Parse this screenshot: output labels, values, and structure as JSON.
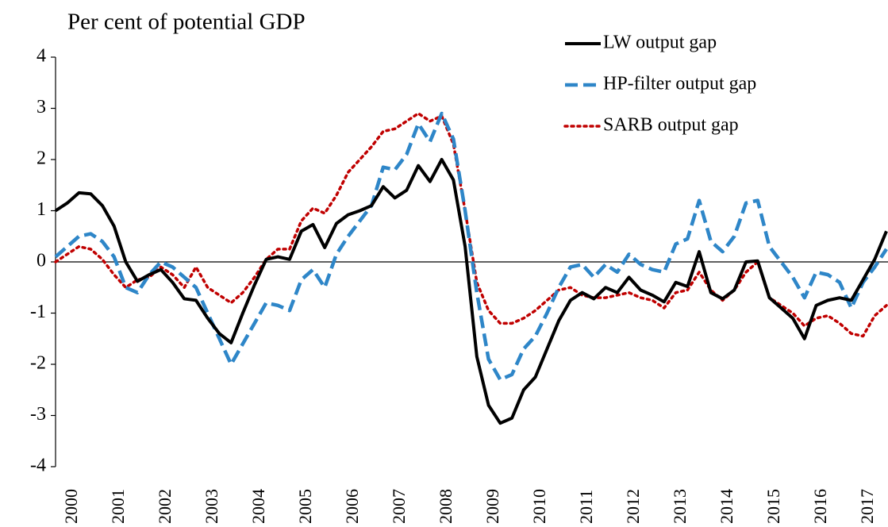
{
  "chart_data": {
    "type": "line",
    "title": "Per cent of potential GDP",
    "categories": [
      "2000",
      null,
      null,
      null,
      "2001",
      null,
      null,
      null,
      "2002",
      null,
      null,
      null,
      "2003",
      null,
      null,
      null,
      "2004",
      null,
      null,
      null,
      "2005",
      null,
      null,
      null,
      "2006",
      null,
      null,
      null,
      "2007",
      null,
      null,
      null,
      "2008",
      null,
      null,
      null,
      "2009",
      null,
      null,
      null,
      "2010",
      null,
      null,
      null,
      "2011",
      null,
      null,
      null,
      "2012",
      null,
      null,
      null,
      "2013",
      null,
      null,
      null,
      "2014",
      null,
      null,
      null,
      "2015",
      null,
      null,
      null,
      "2016",
      null,
      null,
      null,
      "2017",
      null,
      null,
      null
    ],
    "series": [
      {
        "name": "LW output gap",
        "color": "#000000",
        "style": "solid",
        "values": [
          1.0,
          1.15,
          1.35,
          1.33,
          1.1,
          0.7,
          0.0,
          -0.38,
          -0.25,
          -0.15,
          -0.4,
          -0.72,
          -0.75,
          -1.1,
          -1.4,
          -1.58,
          -1.0,
          -0.45,
          0.05,
          0.1,
          0.05,
          0.6,
          0.73,
          0.28,
          0.75,
          0.92,
          1.0,
          1.1,
          1.47,
          1.25,
          1.4,
          1.88,
          1.57,
          2.0,
          1.6,
          0.3,
          -1.85,
          -2.8,
          -3.15,
          -3.05,
          -2.5,
          -2.25,
          -1.7,
          -1.15,
          -0.75,
          -0.6,
          -0.72,
          -0.5,
          -0.6,
          -0.3,
          -0.55,
          -0.65,
          -0.78,
          -0.4,
          -0.48,
          0.2,
          -0.6,
          -0.72,
          -0.55,
          0.0,
          0.02,
          -0.7,
          -0.9,
          -1.1,
          -1.5,
          -0.85,
          -0.75,
          -0.7,
          -0.75,
          -0.35,
          0.05,
          0.6
        ]
      },
      {
        "name": "HP-filter output gap",
        "color": "#2e86c8",
        "style": "dashed",
        "values": [
          0.1,
          0.3,
          0.5,
          0.55,
          0.4,
          0.1,
          -0.5,
          -0.6,
          -0.25,
          0.0,
          -0.1,
          -0.3,
          -0.5,
          -1.0,
          -1.5,
          -2.0,
          -1.6,
          -1.2,
          -0.8,
          -0.85,
          -0.95,
          -0.35,
          -0.15,
          -0.5,
          0.15,
          0.5,
          0.8,
          1.1,
          1.85,
          1.8,
          2.1,
          2.7,
          2.35,
          2.9,
          2.4,
          1.0,
          -0.6,
          -1.9,
          -2.3,
          -2.2,
          -1.7,
          -1.45,
          -1.0,
          -0.5,
          -0.1,
          -0.05,
          -0.3,
          -0.05,
          -0.2,
          0.15,
          -0.05,
          -0.15,
          -0.2,
          0.35,
          0.45,
          1.2,
          0.4,
          0.2,
          0.5,
          1.15,
          1.2,
          0.3,
          0.0,
          -0.3,
          -0.7,
          -0.2,
          -0.25,
          -0.4,
          -0.9,
          -0.4,
          -0.1,
          0.25
        ]
      },
      {
        "name": "SARB output gap",
        "color": "#c00000",
        "style": "dotted",
        "values": [
          0.0,
          0.15,
          0.3,
          0.25,
          0.05,
          -0.25,
          -0.5,
          -0.35,
          -0.3,
          -0.1,
          -0.25,
          -0.5,
          -0.1,
          -0.5,
          -0.65,
          -0.8,
          -0.6,
          -0.3,
          0.05,
          0.25,
          0.25,
          0.8,
          1.05,
          0.95,
          1.3,
          1.75,
          2.0,
          2.25,
          2.55,
          2.6,
          2.75,
          2.9,
          2.75,
          2.85,
          2.3,
          1.0,
          -0.4,
          -0.95,
          -1.2,
          -1.2,
          -1.1,
          -0.95,
          -0.75,
          -0.55,
          -0.5,
          -0.65,
          -0.7,
          -0.7,
          -0.65,
          -0.6,
          -0.7,
          -0.75,
          -0.9,
          -0.6,
          -0.55,
          -0.2,
          -0.55,
          -0.75,
          -0.55,
          -0.2,
          0.0,
          -0.7,
          -0.85,
          -1.0,
          -1.25,
          -1.1,
          -1.05,
          -1.2,
          -1.4,
          -1.45,
          -1.05,
          -0.85
        ]
      }
    ],
    "ylim": [
      -4,
      4
    ],
    "yticks": [
      -4,
      -3,
      -2,
      -1,
      0,
      1,
      2,
      3,
      4
    ],
    "legend": "upper-right"
  }
}
